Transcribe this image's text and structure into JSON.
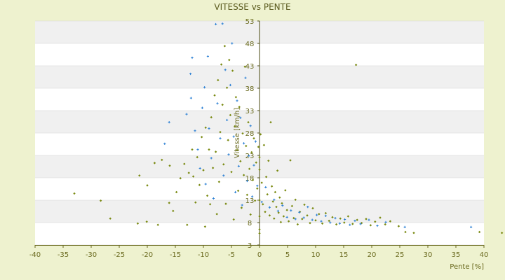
{
  "chart_data": {
    "type": "scatter",
    "title": "VITESSE vs PENTE",
    "xlabel": "Pente [%]",
    "ylabel": "Vitesse [km/h]",
    "xlim": [
      -40,
      40
    ],
    "ylim": [
      3,
      53
    ],
    "x_ticks": [
      -40,
      -35,
      -30,
      -25,
      -20,
      -15,
      -10,
      -5,
      0,
      5,
      10,
      15,
      20,
      25,
      30,
      35,
      40
    ],
    "y_ticks": [
      3,
      8,
      13,
      18,
      23,
      28,
      33,
      38,
      43,
      48,
      53
    ],
    "grid": true,
    "legend": "none",
    "colors": {
      "background": "#eef2cf",
      "band_light": "#ffffff",
      "band_dark": "#f0f0f0",
      "series_a": "#7a8a12",
      "series_b": "#2a7fd4"
    },
    "series": [
      {
        "color": "#7a8a12",
        "points": [
          [
            -33.0,
            14.5
          ],
          [
            -28.3,
            12.9
          ],
          [
            -26.6,
            8.9
          ],
          [
            -21.7,
            7.8
          ],
          [
            -20.1,
            8.2
          ],
          [
            -18.1,
            7.5
          ],
          [
            -21.4,
            18.5
          ],
          [
            -20.0,
            16.3
          ],
          [
            -18.7,
            21.3
          ],
          [
            -17.4,
            22.0
          ],
          [
            -16.1,
            12.4
          ],
          [
            -16.0,
            20.7
          ],
          [
            -15.4,
            10.6
          ],
          [
            -14.8,
            14.8
          ],
          [
            -14.1,
            17.9
          ],
          [
            -13.4,
            21.1
          ],
          [
            -12.9,
            7.5
          ],
          [
            -12.6,
            19.1
          ],
          [
            -12.0,
            24.3
          ],
          [
            -11.8,
            18.3
          ],
          [
            -11.4,
            12.5
          ],
          [
            -11.1,
            22.6
          ],
          [
            -10.7,
            16.4
          ],
          [
            -10.3,
            27.1
          ],
          [
            -10.0,
            19.7
          ],
          [
            -9.7,
            7.1
          ],
          [
            -9.6,
            29.2
          ],
          [
            -9.3,
            14.0
          ],
          [
            -9.0,
            24.3
          ],
          [
            -8.8,
            12.1
          ],
          [
            -8.6,
            31.5
          ],
          [
            -8.3,
            20.2
          ],
          [
            -8.0,
            36.4
          ],
          [
            -7.8,
            23.8
          ],
          [
            -7.6,
            9.9
          ],
          [
            -7.4,
            39.8
          ],
          [
            -7.2,
            17.1
          ],
          [
            -7.0,
            28.2
          ],
          [
            -6.8,
            43.3
          ],
          [
            -6.6,
            34.3
          ],
          [
            -6.4,
            21.0
          ],
          [
            -6.2,
            47.4
          ],
          [
            -6.0,
            12.2
          ],
          [
            -5.8,
            38.1
          ],
          [
            -5.6,
            26.4
          ],
          [
            -5.4,
            44.3
          ],
          [
            -5.2,
            32.0
          ],
          [
            -5.0,
            19.3
          ],
          [
            -4.8,
            41.9
          ],
          [
            -4.6,
            8.7
          ],
          [
            -4.4,
            29.5
          ],
          [
            -4.2,
            36.0
          ],
          [
            -4.0,
            24.2
          ],
          [
            -3.8,
            15.1
          ],
          [
            -3.6,
            33.8
          ],
          [
            -3.4,
            21.7
          ],
          [
            -3.2,
            11.3
          ],
          [
            -3.0,
            27.9
          ],
          [
            -2.8,
            18.6
          ],
          [
            -2.6,
            42.8
          ],
          [
            -2.4,
            25.1
          ],
          [
            -2.2,
            14.2
          ],
          [
            -2.0,
            30.4
          ],
          [
            -1.8,
            20.0
          ],
          [
            -1.6,
            9.8
          ],
          [
            -1.4,
            23.7
          ],
          [
            -1.2,
            17.5
          ],
          [
            -1.0,
            26.8
          ],
          [
            -0.8,
            12.9
          ],
          [
            -0.6,
            21.4
          ],
          [
            -0.4,
            15.6
          ],
          [
            -0.2,
            24.9
          ],
          [
            0.0,
            5.6
          ],
          [
            0.0,
            6.5
          ],
          [
            0.0,
            9.4
          ],
          [
            0.0,
            13.0
          ],
          [
            0.0,
            19.8
          ],
          [
            0.0,
            22.6
          ],
          [
            0.2,
            27.7
          ],
          [
            0.4,
            16.9
          ],
          [
            0.6,
            12.1
          ],
          [
            0.8,
            25.3
          ],
          [
            1.0,
            10.4
          ],
          [
            1.2,
            18.2
          ],
          [
            1.4,
            14.3
          ],
          [
            1.6,
            21.8
          ],
          [
            1.8,
            9.6
          ],
          [
            2.0,
            30.4
          ],
          [
            2.2,
            16.1
          ],
          [
            2.4,
            12.7
          ],
          [
            2.6,
            8.9
          ],
          [
            2.8,
            14.8
          ],
          [
            3.0,
            11.5
          ],
          [
            3.2,
            19.6
          ],
          [
            3.4,
            10.2
          ],
          [
            3.6,
            13.6
          ],
          [
            3.8,
            8.1
          ],
          [
            4.0,
            12.3
          ],
          [
            4.3,
            9.4
          ],
          [
            4.6,
            15.2
          ],
          [
            4.9,
            10.8
          ],
          [
            5.2,
            8.3
          ],
          [
            5.5,
            21.9
          ],
          [
            5.8,
            11.7
          ],
          [
            6.1,
            9.0
          ],
          [
            6.4,
            13.1
          ],
          [
            6.8,
            7.6
          ],
          [
            7.2,
            10.4
          ],
          [
            7.6,
            8.8
          ],
          [
            8.0,
            12.0
          ],
          [
            8.5,
            9.6
          ],
          [
            9.0,
            7.9
          ],
          [
            9.5,
            11.2
          ],
          [
            10.0,
            8.5
          ],
          [
            10.6,
            9.9
          ],
          [
            11.2,
            7.8
          ],
          [
            11.8,
            10.1
          ],
          [
            12.4,
            8.4
          ],
          [
            13.0,
            9.2
          ],
          [
            13.7,
            7.6
          ],
          [
            14.4,
            8.9
          ],
          [
            15.1,
            8.0
          ],
          [
            15.8,
            9.4
          ],
          [
            16.6,
            7.7
          ],
          [
            17.2,
            43.2
          ],
          [
            17.4,
            8.6
          ],
          [
            18.2,
            7.9
          ],
          [
            19.0,
            8.8
          ],
          [
            19.8,
            7.4
          ],
          [
            20.6,
            8.2
          ],
          [
            21.5,
            9.1
          ],
          [
            22.4,
            7.6
          ],
          [
            23.3,
            8.3
          ],
          [
            24.8,
            7.2
          ],
          [
            26.0,
            5.9
          ],
          [
            27.5,
            5.7
          ],
          [
            39.2,
            5.9
          ],
          [
            43.2,
            5.7
          ]
        ]
      },
      {
        "color": "#2a7fd4",
        "points": [
          [
            -16.9,
            25.6
          ],
          [
            -16.1,
            30.4
          ],
          [
            -13.0,
            32.2
          ],
          [
            -12.2,
            35.8
          ],
          [
            -12.3,
            41.2
          ],
          [
            -12.0,
            44.8
          ],
          [
            -11.5,
            28.5
          ],
          [
            -11.0,
            24.3
          ],
          [
            -10.6,
            20.1
          ],
          [
            -10.2,
            33.6
          ],
          [
            -9.8,
            38.2
          ],
          [
            -9.6,
            16.6
          ],
          [
            -9.2,
            45.1
          ],
          [
            -9.0,
            29.0
          ],
          [
            -8.6,
            22.4
          ],
          [
            -8.2,
            13.4
          ],
          [
            -7.8,
            52.3
          ],
          [
            -7.5,
            34.6
          ],
          [
            -7.0,
            26.8
          ],
          [
            -6.6,
            52.4
          ],
          [
            -6.4,
            18.5
          ],
          [
            -6.1,
            42.1
          ],
          [
            -5.8,
            30.9
          ],
          [
            -5.5,
            23.2
          ],
          [
            -5.2,
            38.7
          ],
          [
            -4.9,
            48.0
          ],
          [
            -4.6,
            27.2
          ],
          [
            -4.3,
            14.8
          ],
          [
            -4.0,
            35.2
          ],
          [
            -3.7,
            20.6
          ],
          [
            -3.4,
            31.4
          ],
          [
            -3.1,
            11.9
          ],
          [
            -2.8,
            25.7
          ],
          [
            -2.5,
            40.3
          ],
          [
            -2.2,
            17.3
          ],
          [
            -1.9,
            22.9
          ],
          [
            -1.6,
            29.6
          ],
          [
            -1.3,
            13.8
          ],
          [
            -1.0,
            20.8
          ],
          [
            -0.7,
            26.1
          ],
          [
            -0.4,
            16.2
          ],
          [
            0.4,
            12.6
          ],
          [
            1.1,
            15.9
          ],
          [
            1.8,
            11.4
          ],
          [
            2.6,
            13.1
          ],
          [
            3.3,
            10.6
          ],
          [
            4.1,
            11.8
          ],
          [
            4.9,
            9.2
          ],
          [
            5.6,
            10.7
          ],
          [
            6.4,
            8.8
          ],
          [
            7.1,
            10.3
          ],
          [
            7.9,
            9.1
          ],
          [
            8.6,
            11.5
          ],
          [
            9.4,
            8.6
          ],
          [
            10.2,
            9.7
          ],
          [
            11.0,
            8.3
          ],
          [
            11.8,
            9.5
          ],
          [
            12.6,
            8.0
          ],
          [
            13.5,
            9.0
          ],
          [
            14.3,
            7.8
          ],
          [
            15.2,
            8.7
          ],
          [
            16.1,
            7.5
          ],
          [
            17.0,
            8.4
          ],
          [
            18.0,
            7.7
          ],
          [
            19.5,
            8.6
          ],
          [
            21.0,
            7.3
          ],
          [
            22.5,
            8.1
          ],
          [
            25.9,
            7.0
          ],
          [
            37.7,
            7.0
          ]
        ]
      }
    ]
  }
}
